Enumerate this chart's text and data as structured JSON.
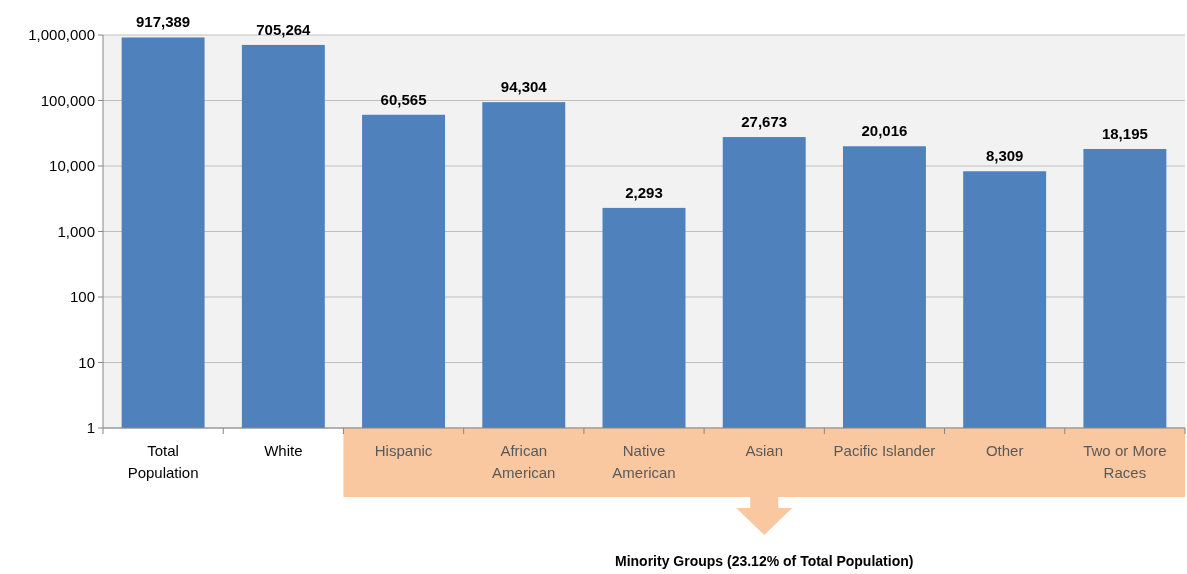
{
  "chart_data": {
    "type": "bar",
    "log": true,
    "grid": "y",
    "categories": [
      "Total\nPopulation",
      "White",
      "Hispanic",
      "African\nAmerican",
      "Native\nAmerican",
      "Asian",
      "Pacific Islander",
      "Other",
      "Two or More\nRaces"
    ],
    "values": [
      917389,
      705264,
      60565,
      94304,
      2293,
      27673,
      20016,
      8309,
      18195
    ],
    "value_labels": [
      "917,389",
      "705,264",
      "60,565",
      "94,304",
      "2,293",
      "27,673",
      "20,016",
      "8,309",
      "18,195"
    ],
    "color": "#4f81bd",
    "ylim": [
      1,
      1000000
    ],
    "yticks": [
      {
        "value": 1,
        "label": "1"
      },
      {
        "value": 10,
        "label": "10"
      },
      {
        "value": 100,
        "label": "100"
      },
      {
        "value": 1000,
        "label": "1,000"
      },
      {
        "value": 10000,
        "label": "10,000"
      },
      {
        "value": 100000,
        "label": "100,000"
      },
      {
        "value": 1000000,
        "label": "1,000,000"
      }
    ],
    "annotations": [
      "Minority Groups (23.12% of Total Population)"
    ]
  }
}
